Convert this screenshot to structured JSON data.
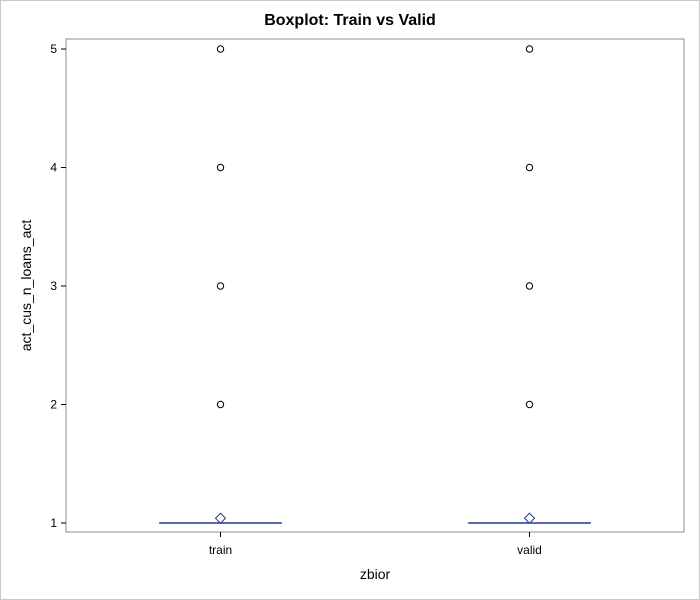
{
  "chart_data": {
    "type": "box",
    "title": "Boxplot: Train vs Valid",
    "xlabel": "zbior",
    "ylabel": "act_cus_n_loans_act",
    "categories": [
      "train",
      "valid"
    ],
    "ylim": [
      1,
      5
    ],
    "yticks": [
      1,
      2,
      3,
      4,
      5
    ],
    "grid": false,
    "boxes": [
      {
        "category": "train",
        "min": 1,
        "q1": 1,
        "median": 1,
        "q3": 1,
        "max": 1,
        "mean": 1.04,
        "outliers": [
          2,
          3,
          4,
          5
        ]
      },
      {
        "category": "valid",
        "min": 1,
        "q1": 1,
        "median": 1,
        "q3": 1,
        "max": 1,
        "mean": 1.04,
        "outliers": [
          2,
          3,
          4,
          5
        ]
      }
    ],
    "colors": {
      "box": "#1f3a8f",
      "mean_marker": "#1f3a8f",
      "outlier": "#000000",
      "axis": "#8c8c8c"
    }
  }
}
